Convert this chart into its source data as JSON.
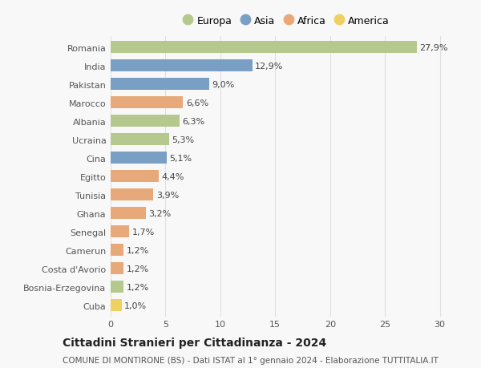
{
  "categories": [
    "Romania",
    "India",
    "Pakistan",
    "Marocco",
    "Albania",
    "Ucraina",
    "Cina",
    "Egitto",
    "Tunisia",
    "Ghana",
    "Senegal",
    "Camerun",
    "Costa d'Avorio",
    "Bosnia-Erzegovina",
    "Cuba"
  ],
  "values": [
    27.9,
    12.9,
    9.0,
    6.6,
    6.3,
    5.3,
    5.1,
    4.4,
    3.9,
    3.2,
    1.7,
    1.2,
    1.2,
    1.2,
    1.0
  ],
  "labels": [
    "27,9%",
    "12,9%",
    "9,0%",
    "6,6%",
    "6,3%",
    "5,3%",
    "5,1%",
    "4,4%",
    "3,9%",
    "3,2%",
    "1,7%",
    "1,2%",
    "1,2%",
    "1,2%",
    "1,0%"
  ],
  "continents": [
    "Europa",
    "Asia",
    "Asia",
    "Africa",
    "Europa",
    "Europa",
    "Asia",
    "Africa",
    "Africa",
    "Africa",
    "Africa",
    "Africa",
    "Africa",
    "Europa",
    "America"
  ],
  "continent_colors": {
    "Europa": "#b5c98e",
    "Asia": "#7a9fc4",
    "Africa": "#e8a97a",
    "America": "#f0d060"
  },
  "legend_order": [
    "Europa",
    "Asia",
    "Africa",
    "America"
  ],
  "title": "Cittadini Stranieri per Cittadinanza - 2024",
  "subtitle": "COMUNE DI MONTIRONE (BS) - Dati ISTAT al 1° gennaio 2024 - Elaborazione TUTTITALIA.IT",
  "xlim": [
    0,
    32
  ],
  "xticks": [
    0,
    5,
    10,
    15,
    20,
    25,
    30
  ],
  "background_color": "#f8f8f8",
  "grid_color": "#e0e0e0",
  "bar_height": 0.65,
  "title_fontsize": 10,
  "subtitle_fontsize": 7.5,
  "tick_fontsize": 8,
  "label_fontsize": 8
}
